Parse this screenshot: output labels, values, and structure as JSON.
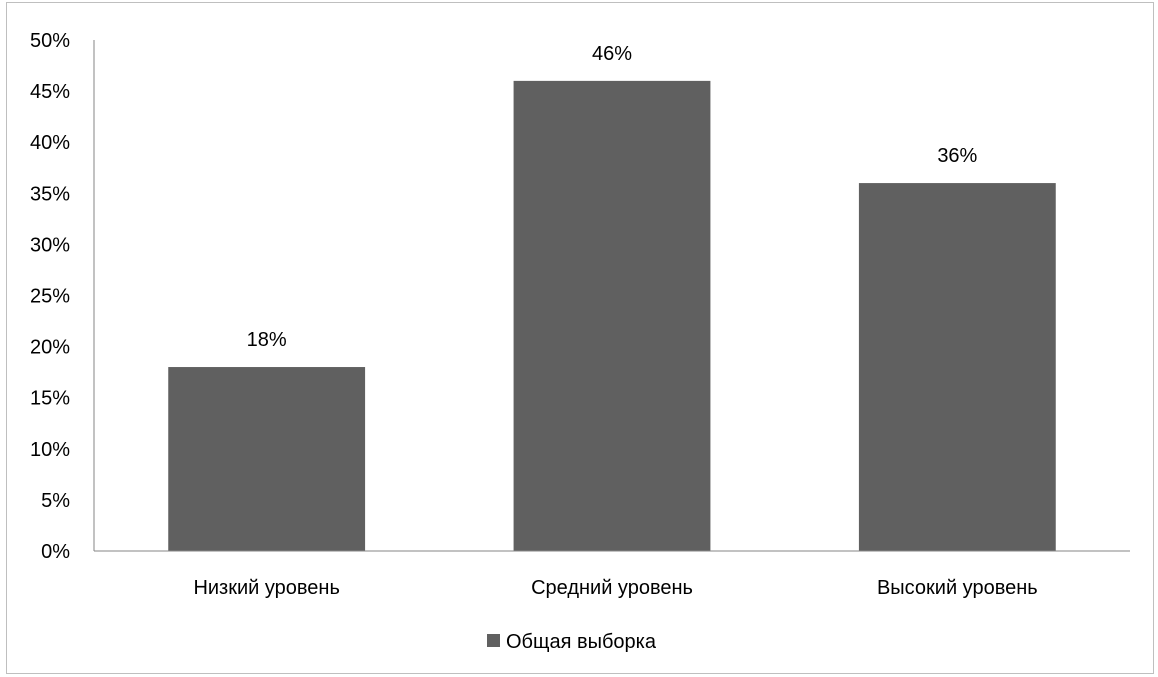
{
  "chart_data": {
    "type": "bar",
    "categories": [
      "Низкий уровень",
      "Средний уровень",
      "Высокий уровень"
    ],
    "series": [
      {
        "name": "Общая выборка",
        "values": [
          18,
          46,
          36
        ],
        "color": "#606060"
      }
    ],
    "data_labels": [
      "18%",
      "46%",
      "36%"
    ],
    "ylim": [
      0,
      50
    ],
    "yticks": [
      0,
      5,
      10,
      15,
      20,
      25,
      30,
      35,
      40,
      45,
      50
    ],
    "ytick_labels": [
      "0%",
      "5%",
      "10%",
      "15%",
      "20%",
      "25%",
      "30%",
      "35%",
      "40%",
      "45%",
      "50%"
    ],
    "title": "",
    "xlabel": "",
    "ylabel": "",
    "grid": false,
    "legend": {
      "position": "bottom",
      "entries": [
        "Общая выборка"
      ]
    }
  }
}
